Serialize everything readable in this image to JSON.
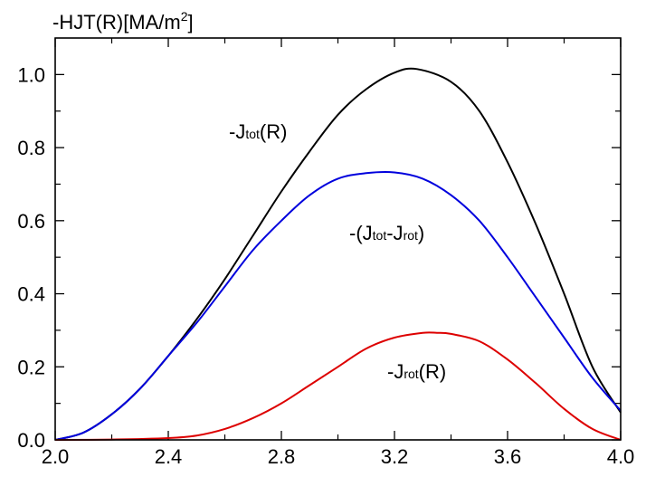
{
  "chart_data": {
    "type": "line",
    "ylabel_parts": {
      "base": "-HJT(R)[MA/m",
      "sup": "2",
      "tail": "]"
    },
    "xlim": [
      2.0,
      4.0
    ],
    "ylim": [
      0.0,
      1.1
    ],
    "x_ticks": [
      "2.0",
      "2.4",
      "2.8",
      "3.2",
      "3.6",
      "4.0"
    ],
    "y_ticks": [
      "0.0",
      "0.2",
      "0.4",
      "0.6",
      "0.8",
      "1.0"
    ],
    "grid": false,
    "series": [
      {
        "label_parts": [
          "-J",
          "tot",
          "(R)"
        ],
        "color": "#000000",
        "x": [
          2.0,
          2.1,
          2.2,
          2.3,
          2.4,
          2.5,
          2.6,
          2.7,
          2.8,
          2.9,
          3.0,
          3.1,
          3.2,
          3.28,
          3.4,
          3.5,
          3.6,
          3.7,
          3.8,
          3.9,
          4.0
        ],
        "y": [
          0.0,
          0.02,
          0.07,
          0.14,
          0.23,
          0.33,
          0.44,
          0.56,
          0.68,
          0.79,
          0.89,
          0.96,
          1.005,
          1.015,
          0.98,
          0.9,
          0.76,
          0.59,
          0.4,
          0.2,
          0.075
        ]
      },
      {
        "label_parts": [
          "-(J",
          "tot",
          "-J",
          "rot",
          ")"
        ],
        "color": "#0000dd",
        "x": [
          2.0,
          2.1,
          2.2,
          2.3,
          2.4,
          2.5,
          2.6,
          2.7,
          2.8,
          2.9,
          3.0,
          3.1,
          3.2,
          3.3,
          3.4,
          3.5,
          3.6,
          3.7,
          3.8,
          3.9,
          4.0
        ],
        "y": [
          0.0,
          0.02,
          0.07,
          0.14,
          0.23,
          0.32,
          0.42,
          0.52,
          0.6,
          0.67,
          0.715,
          0.73,
          0.732,
          0.715,
          0.67,
          0.6,
          0.5,
          0.39,
          0.28,
          0.17,
          0.08
        ]
      },
      {
        "label_parts": [
          "-J",
          "rot",
          "(R)"
        ],
        "color": "#dd0000",
        "x": [
          2.0,
          2.2,
          2.4,
          2.5,
          2.6,
          2.7,
          2.8,
          2.9,
          3.0,
          3.1,
          3.2,
          3.3,
          3.35,
          3.4,
          3.5,
          3.6,
          3.7,
          3.8,
          3.9,
          4.0
        ],
        "y": [
          0.0,
          0.001,
          0.005,
          0.012,
          0.03,
          0.06,
          0.1,
          0.15,
          0.2,
          0.25,
          0.28,
          0.293,
          0.293,
          0.29,
          0.27,
          0.22,
          0.155,
          0.085,
          0.03,
          0.0
        ]
      }
    ]
  }
}
